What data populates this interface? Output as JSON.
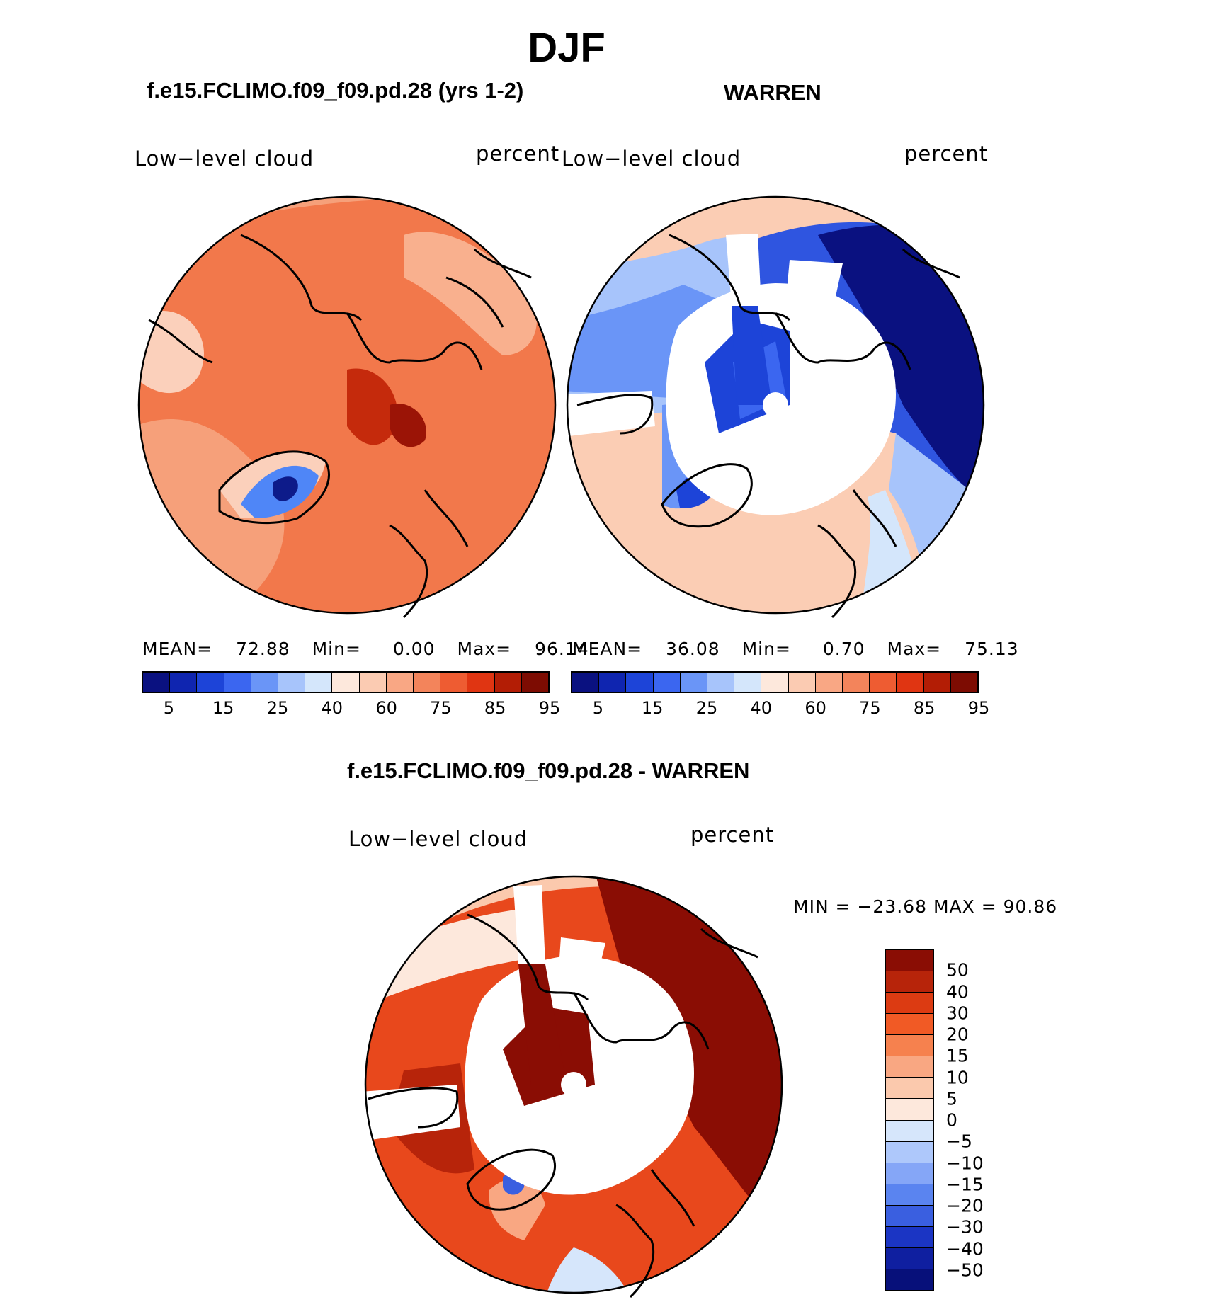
{
  "figure": {
    "title": "DJF"
  },
  "panels": [
    {
      "title": "f.e15.FCLIMO.f09_f09.pd.28 (yrs 1-2)",
      "variable": "Low−level cloud",
      "units": "percent",
      "stats": {
        "mean_label": "MEAN=",
        "mean": "72.88",
        "min_label": "Min=",
        "min": "0.00",
        "max_label": "Max=",
        "max": "96.14"
      },
      "colors": {
        "background": "#f2784b",
        "ice_sheet": "#4f86f7"
      }
    },
    {
      "title": "WARREN",
      "variable": "Low−level cloud",
      "units": "percent",
      "stats": {
        "mean_label": "MEAN=",
        "mean": "36.08",
        "min_label": "Min=",
        "min": "0.70",
        "max_label": "Max=",
        "max": "75.13"
      },
      "colors": {
        "background": "#fbcdb4",
        "deep": "#1a2fc0"
      }
    },
    {
      "title": "f.e15.FCLIMO.f09_f09.pd.28 - WARREN",
      "variable": "Low−level cloud",
      "units": "percent",
      "stats_text": "MIN = −23.68 MAX =   90.86",
      "colors": {
        "background": "#e8481c",
        "deep": "#8a0d04"
      }
    }
  ],
  "colorbar_top": {
    "colors": [
      "#0a1180",
      "#0f25b0",
      "#1d44d8",
      "#3b66f0",
      "#6a95f7",
      "#a7c4fb",
      "#d4e6fb",
      "#fde8dc",
      "#fbcbb2",
      "#f9a784",
      "#f3845b",
      "#ee5c32",
      "#e03512",
      "#b31d05",
      "#7d0c02"
    ],
    "ticks": [
      "5",
      "15",
      "25",
      "40",
      "60",
      "75",
      "85",
      "95"
    ]
  },
  "colorbar_diff": {
    "colors": [
      "#8a0d04",
      "#b7240a",
      "#dc3b12",
      "#f15a25",
      "#f6814e",
      "#f9a782",
      "#fbc9ad",
      "#fde8dc",
      "#d6e6fb",
      "#aec8fb",
      "#85a6f7",
      "#5a84f0",
      "#3a5fe0",
      "#1b35c4",
      "#0f1fa0",
      "#07107a"
    ],
    "ticks": [
      "50",
      "40",
      "30",
      "20",
      "15",
      "10",
      "5",
      "0",
      "−5",
      "−10",
      "−15",
      "−20",
      "−30",
      "−40",
      "−50"
    ]
  }
}
